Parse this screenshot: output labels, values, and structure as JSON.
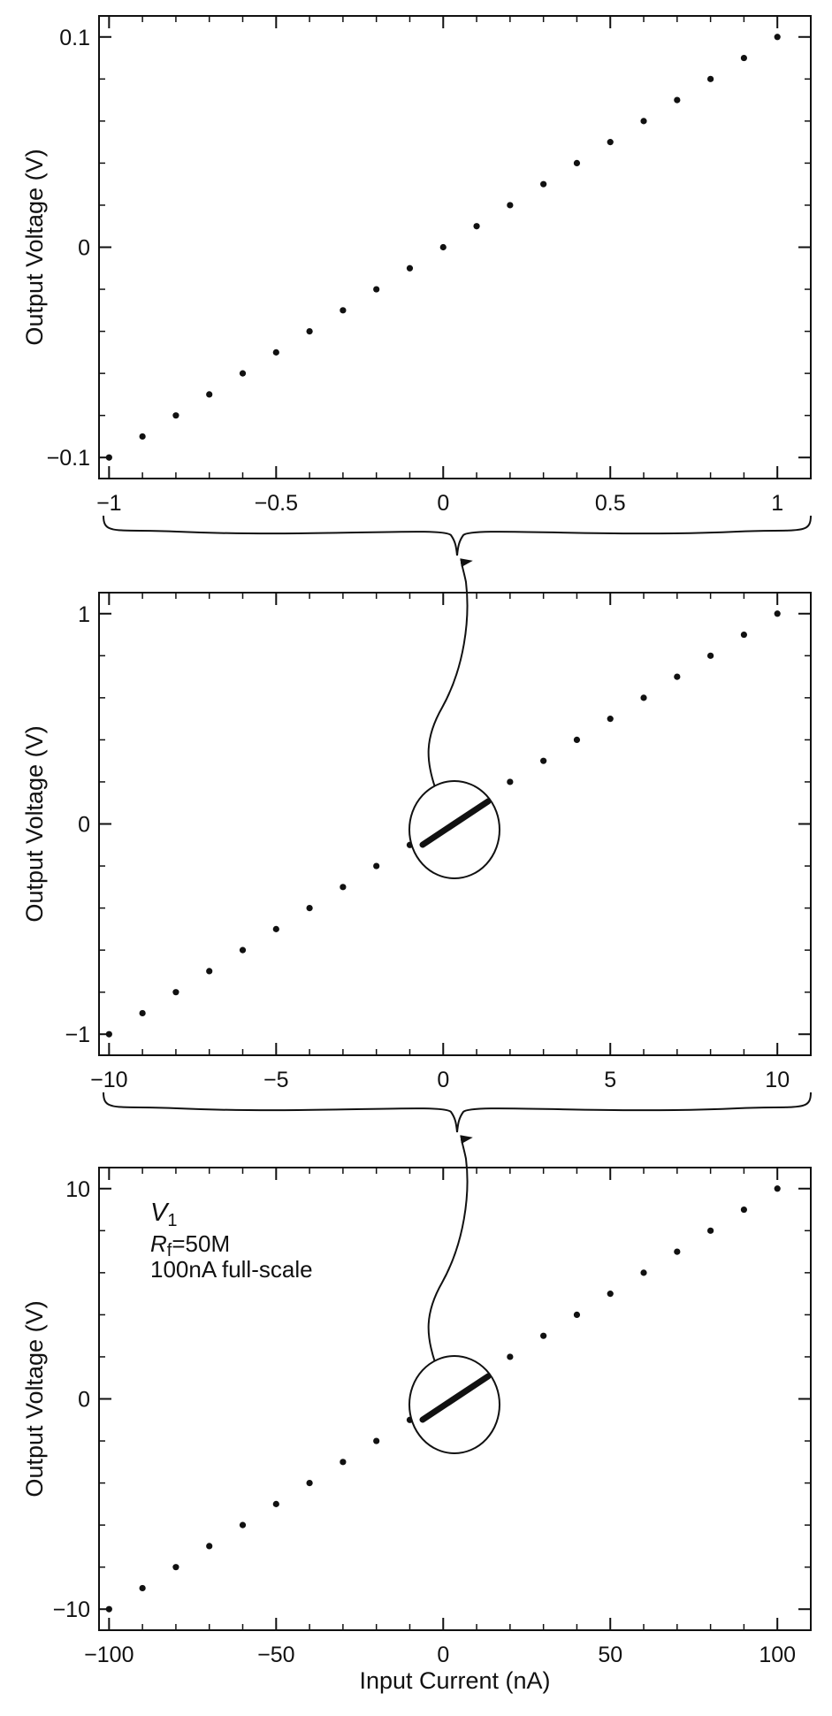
{
  "figure": {
    "annotation": {
      "v_label": "V",
      "v_sub": "1",
      "rf_label": "R",
      "rf_sub": "f",
      "rf_value": "=50M",
      "fullscale": "100nA full-scale"
    }
  },
  "chart_data": [
    {
      "type": "scatter",
      "ylabel": "Output Voltage (V)",
      "xlabel": "",
      "xlim": [
        -1.03,
        1.1
      ],
      "ylim": [
        -0.11,
        0.11
      ],
      "xticks": [
        -1,
        -0.5,
        0,
        0.5,
        1
      ],
      "xtick_labels": [
        "−1",
        "−0.5",
        "0",
        "0.5",
        "1"
      ],
      "yticks": [
        -0.1,
        0,
        0.1
      ],
      "ytick_labels": [
        "−0.1",
        "0",
        "0.1"
      ],
      "x": [
        -1,
        -0.9,
        -0.8,
        -0.7,
        -0.6,
        -0.5,
        -0.4,
        -0.3,
        -0.2,
        -0.1,
        0,
        0.1,
        0.2,
        0.3,
        0.4,
        0.5,
        0.6,
        0.7,
        0.8,
        0.9,
        1
      ],
      "y": [
        -0.1,
        -0.09,
        -0.08,
        -0.07,
        -0.06,
        -0.05,
        -0.04,
        -0.03,
        -0.02,
        -0.01,
        0,
        0.01,
        0.02,
        0.03,
        0.04,
        0.05,
        0.06,
        0.07,
        0.08,
        0.09,
        0.1
      ]
    },
    {
      "type": "scatter",
      "ylabel": "Output Voltage (V)",
      "xlabel": "",
      "xlim": [
        -10.3,
        11
      ],
      "ylim": [
        -1.1,
        1.1
      ],
      "xticks": [
        -10,
        -5,
        0,
        5,
        10
      ],
      "xtick_labels": [
        "−10",
        "−5",
        "0",
        "5",
        "10"
      ],
      "yticks": [
        -1,
        0,
        1
      ],
      "ytick_labels": [
        "−1",
        "0",
        "1"
      ],
      "x": [
        -10,
        -9,
        -8,
        -7,
        -6,
        -5,
        -4,
        -3,
        -2,
        -1,
        0,
        1,
        2,
        3,
        4,
        5,
        6,
        7,
        8,
        9,
        10
      ],
      "y": [
        -1,
        -0.9,
        -0.8,
        -0.7,
        -0.6,
        -0.5,
        -0.4,
        -0.3,
        -0.2,
        -0.1,
        0,
        0.1,
        0.2,
        0.3,
        0.4,
        0.5,
        0.6,
        0.7,
        0.8,
        0.9,
        1
      ]
    },
    {
      "type": "scatter",
      "ylabel": "Output Voltage (V)",
      "xlabel": "Input Current (nA)",
      "xlim": [
        -103,
        110
      ],
      "ylim": [
        -11,
        11
      ],
      "xticks": [
        -100,
        -50,
        0,
        50,
        100
      ],
      "xtick_labels": [
        "−100",
        "−50",
        "0",
        "50",
        "100"
      ],
      "yticks": [
        -10,
        0,
        10
      ],
      "ytick_labels": [
        "−10",
        "0",
        "10"
      ],
      "x": [
        -100,
        -90,
        -80,
        -70,
        -60,
        -50,
        -40,
        -30,
        -20,
        -10,
        0,
        10,
        20,
        30,
        40,
        50,
        60,
        70,
        80,
        90,
        100
      ],
      "y": [
        -10,
        -9,
        -8,
        -7,
        -6,
        -5,
        -4,
        -3,
        -2,
        -1,
        0,
        1,
        2,
        3,
        4,
        5,
        6,
        7,
        8,
        9,
        10
      ]
    }
  ]
}
